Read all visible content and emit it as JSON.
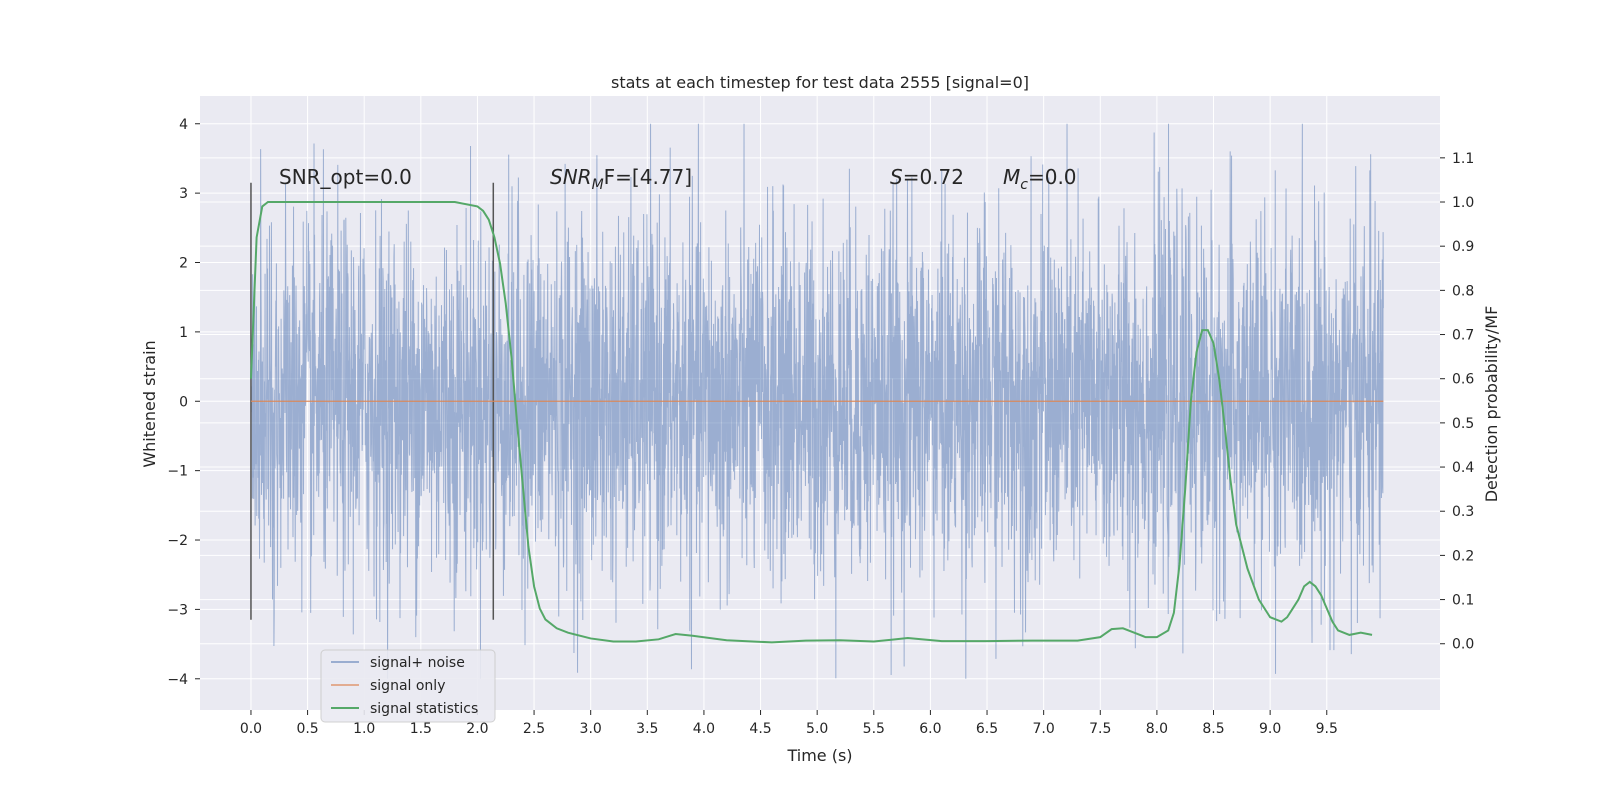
{
  "chart_data": {
    "type": "line",
    "title": "stats at each timestep for test data 2555 [signal=0]",
    "xlabel": "Time (s)",
    "ylabel": "Whitened strain",
    "y2label": "Detection probability/MF",
    "xlim": [
      -0.45,
      10.5
    ],
    "ylim": [
      -4.45,
      4.4
    ],
    "y2lim": [
      -0.15,
      1.24
    ],
    "xticks": [
      0.0,
      0.5,
      1.0,
      1.5,
      2.0,
      2.5,
      3.0,
      3.5,
      4.0,
      4.5,
      5.0,
      5.5,
      6.0,
      6.5,
      7.0,
      7.5,
      8.0,
      8.5,
      9.0,
      9.5
    ],
    "xtick_labels": [
      "0.0",
      "0.5",
      "1.0",
      "1.5",
      "2.0",
      "2.5",
      "3.0",
      "3.5",
      "4.0",
      "4.5",
      "5.0",
      "5.5",
      "6.0",
      "6.5",
      "7.0",
      "7.5",
      "8.0",
      "8.5",
      "9.0",
      "9.5"
    ],
    "yticks": [
      4,
      3,
      2,
      1,
      0,
      -1,
      -2,
      -3,
      -4
    ],
    "ytick_labels": [
      "4",
      "3",
      "2",
      "1",
      "0",
      "−1",
      "−2",
      "−3",
      "−4"
    ],
    "y2ticks": [
      1.1,
      1.0,
      0.9,
      0.8,
      0.7,
      0.6,
      0.5,
      0.4,
      0.3,
      0.2,
      0.1,
      0.0
    ],
    "y2tick_labels": [
      "1.1",
      "1.0",
      "0.9",
      "0.8",
      "0.7",
      "0.6",
      "0.5",
      "0.4",
      "0.3",
      "0.2",
      "0.1",
      "0.0"
    ],
    "grid": true,
    "legend_position": "lower-left",
    "legend": [
      "signal+ noise",
      "signal only",
      "signal statistics"
    ],
    "colors": {
      "signal_noise": "#4c72b0",
      "signal_only": "#dd8452",
      "statistics": "#55a868",
      "marker": "#555555",
      "plot_bg": "#eaeaf2",
      "grid": "#ffffff"
    },
    "annotations": {
      "snr_opt": "SNR_opt=0.0",
      "snr_mf_base": "SNR",
      "snr_mf_sub": "M",
      "snr_mf_rest": "F=[4.77]",
      "s_var": "S",
      "s_rest": "=0.72",
      "mc_var": "M",
      "mc_sub": "c",
      "mc_rest": "=0.0"
    },
    "markers_x": [
      0.0,
      2.14
    ],
    "markers_y_range": [
      -3.15,
      3.15
    ],
    "noise_x_range": [
      0.0,
      10.0
    ],
    "noise_envelope_sigma": 1.3,
    "noise_samples": 4096,
    "signal_only_value": 0.0,
    "statistics_series": {
      "name": "signal statistics",
      "x": [
        0.0,
        0.05,
        0.1,
        0.15,
        0.3,
        0.5,
        1.0,
        1.5,
        1.8,
        2.0,
        2.05,
        2.1,
        2.15,
        2.2,
        2.25,
        2.3,
        2.35,
        2.4,
        2.45,
        2.5,
        2.55,
        2.6,
        2.7,
        2.8,
        3.0,
        3.2,
        3.4,
        3.6,
        3.75,
        3.9,
        4.2,
        4.6,
        4.9,
        5.2,
        5.5,
        5.8,
        6.1,
        6.5,
        6.9,
        7.3,
        7.5,
        7.6,
        7.7,
        7.8,
        7.9,
        8.0,
        8.1,
        8.15,
        8.2,
        8.25,
        8.3,
        8.35,
        8.4,
        8.45,
        8.5,
        8.55,
        8.6,
        8.65,
        8.7,
        8.8,
        8.9,
        9.0,
        9.1,
        9.15,
        9.2,
        9.25,
        9.3,
        9.35,
        9.4,
        9.45,
        9.5,
        9.55,
        9.6,
        9.7,
        9.8,
        9.9
      ],
      "y": [
        0.6,
        0.92,
        0.99,
        1.0,
        1.0,
        1.0,
        1.0,
        1.0,
        1.0,
        0.99,
        0.98,
        0.96,
        0.92,
        0.86,
        0.77,
        0.65,
        0.5,
        0.36,
        0.22,
        0.13,
        0.08,
        0.055,
        0.035,
        0.025,
        0.012,
        0.005,
        0.005,
        0.01,
        0.022,
        0.018,
        0.008,
        0.003,
        0.007,
        0.008,
        0.005,
        0.013,
        0.006,
        0.006,
        0.007,
        0.007,
        0.015,
        0.033,
        0.035,
        0.025,
        0.015,
        0.015,
        0.03,
        0.07,
        0.18,
        0.35,
        0.55,
        0.66,
        0.71,
        0.71,
        0.68,
        0.6,
        0.49,
        0.37,
        0.27,
        0.17,
        0.1,
        0.06,
        0.05,
        0.06,
        0.08,
        0.1,
        0.13,
        0.14,
        0.13,
        0.11,
        0.08,
        0.05,
        0.03,
        0.02,
        0.025,
        0.02
      ]
    }
  }
}
